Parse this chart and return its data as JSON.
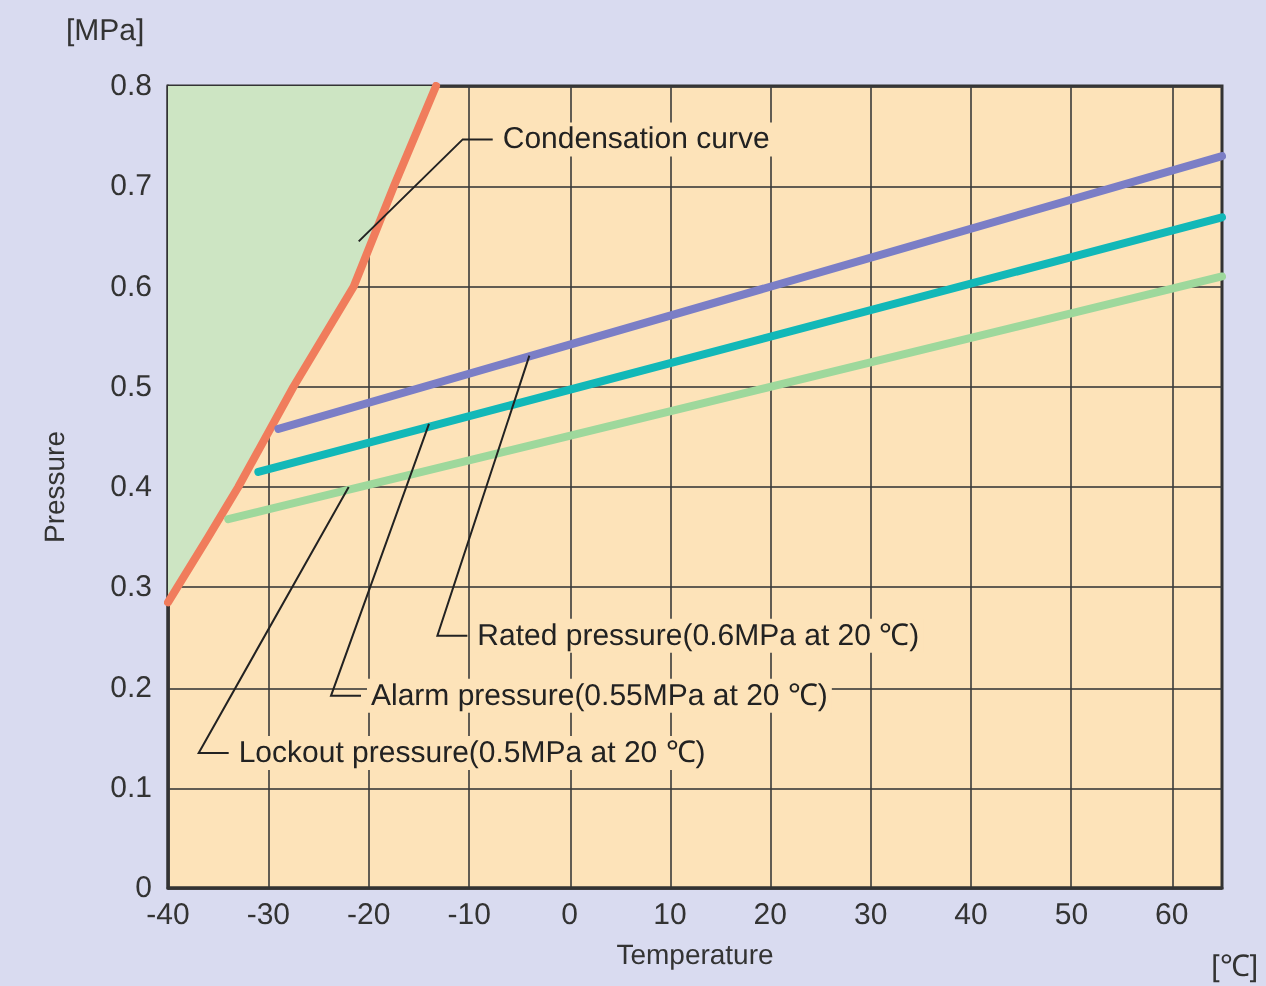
{
  "chart_data": {
    "type": "line",
    "xlabel": "Temperature",
    "ylabel": "Pressure",
    "xlim": [
      -40,
      65
    ],
    "xticks": [
      -40,
      -30,
      -20,
      -10,
      0,
      10,
      20,
      30,
      40,
      50,
      60
    ],
    "ylim": [
      0,
      0.8
    ],
    "yticks": [
      0,
      0.1,
      0.2,
      0.3,
      0.4,
      0.5,
      0.6,
      0.7,
      0.8
    ],
    "grid": true,
    "marker": "none",
    "line_style": "solid",
    "series": [
      {
        "color": "#f07c5c",
        "x": [
          -40,
          -36,
          -33,
          -27.5,
          -21.5,
          -17.5,
          -13.3
        ],
        "values": [
          0.285,
          0.35,
          0.4,
          0.5,
          0.6,
          0.7,
          0.8
        ]
      },
      {
        "color": "#7b7ec6",
        "x": [
          -29,
          65
        ],
        "values": [
          0.458,
          0.73
        ]
      },
      {
        "color": "#12b8b8",
        "x": [
          -31,
          65
        ],
        "values": [
          0.415,
          0.669
        ]
      },
      {
        "color": "#9ed89c",
        "x": [
          -34,
          65
        ],
        "values": [
          0.368,
          0.61
        ]
      }
    ],
    "annotations": [
      {
        "text": "Condensation curve",
        "x": -21,
        "y": 0.645
      },
      {
        "text": "Rated pressure(0.6MPa at 20 ℃)",
        "x": -4,
        "y": 0.531
      },
      {
        "text": "Alarm pressure(0.55MPa at 20 ℃)",
        "x": -14,
        "y": 0.463
      },
      {
        "text": "Lockout pressure(0.5MPa at 20 ℃)",
        "x": -22,
        "y": 0.4
      },
      "[MPa]",
      "[℃]"
    ]
  }
}
